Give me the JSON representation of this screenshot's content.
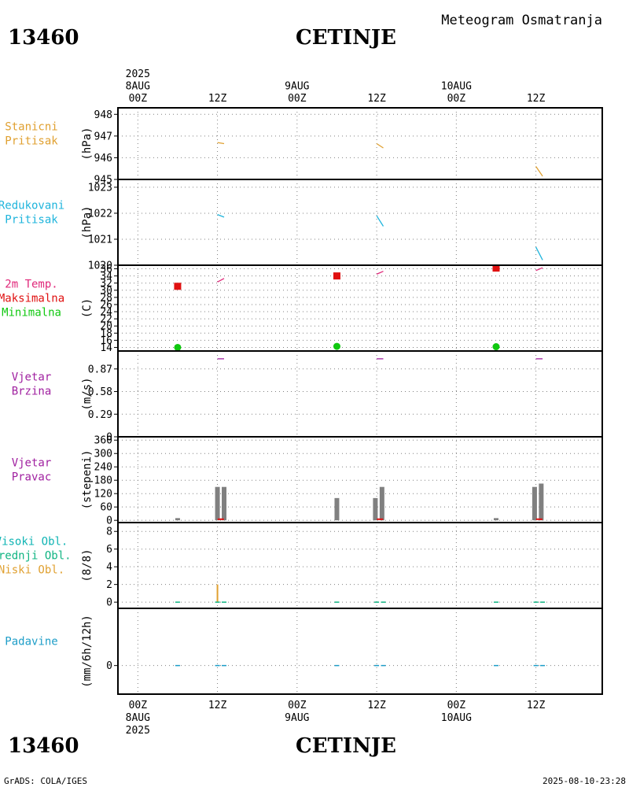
{
  "header": {
    "product": "Meteogram Osmatranja",
    "station_id": "13460",
    "station_name": "CETINJE"
  },
  "footer": {
    "credit": "GrADS: COLA/IGES",
    "timestamp": "2025-08-10-23:28"
  },
  "time_axis": {
    "ticks": [
      {
        "hour": 0,
        "top": [
          "2025",
          "8AUG",
          "00Z"
        ],
        "bottom": [
          "00Z",
          "8AUG",
          "2025"
        ]
      },
      {
        "hour": 12,
        "top": [
          "12Z"
        ],
        "bottom": [
          "12Z"
        ]
      },
      {
        "hour": 24,
        "top": [
          "9AUG",
          "00Z"
        ],
        "bottom": [
          "00Z",
          "9AUG"
        ]
      },
      {
        "hour": 36,
        "top": [
          "12Z"
        ],
        "bottom": [
          "12Z"
        ]
      },
      {
        "hour": 48,
        "top": [
          "10AUG",
          "00Z"
        ],
        "bottom": [
          "00Z",
          "10AUG"
        ]
      },
      {
        "hour": 60,
        "top": [
          "12Z"
        ],
        "bottom": [
          "12Z"
        ]
      }
    ],
    "xlim": [
      -3,
      70
    ]
  },
  "colors": {
    "station_pressure": "#e0a030",
    "reduced_pressure": "#1eb4dc",
    "temp_label": "#e0287a",
    "t_max": "#e01010",
    "t_min": "#10c810",
    "wind": "#a020a0",
    "cloud_high": "#10b4b4",
    "cloud_mid": "#10b482",
    "cloud_low": "#e0a030",
    "precip": "#1e9ec8",
    "wind_dir_bar": "#808080",
    "dotted_grid": "#808080"
  },
  "chart_data": [
    {
      "id": "station-pressure",
      "type": "line",
      "labels": [
        {
          "text": "Stanicni",
          "color": "#e0a030"
        },
        {
          "text": "Pritisak",
          "color": "#e0a030"
        }
      ],
      "ylabel": "(hPa)",
      "ylim": [
        945,
        948.3
      ],
      "yticks": [
        945,
        946,
        947,
        948
      ],
      "series": [
        {
          "color": "#e0a030",
          "points": [
            [
              12,
              946.7
            ],
            [
              13,
              946.65
            ]
          ]
        },
        {
          "color": "#e0a030",
          "points": [
            [
              36,
              946.65
            ],
            [
              37,
              946.45
            ]
          ]
        },
        {
          "color": "#e0a030",
          "points": [
            [
              60,
              945.6
            ],
            [
              61,
              945.15
            ]
          ]
        }
      ]
    },
    {
      "id": "reduced-pressure",
      "type": "line",
      "labels": [
        {
          "text": "Redukovani",
          "color": "#1eb4dc"
        },
        {
          "text": "Pritisak",
          "color": "#1eb4dc"
        }
      ],
      "ylabel": "(hPa)",
      "ylim": [
        1020,
        1023.3
      ],
      "yticks": [
        1020,
        1021,
        1022,
        1023
      ],
      "ytick_labels": [
        "1020",
        "1021",
        "1022",
        "1023"
      ],
      "series": [
        {
          "color": "#1eb4dc",
          "points": [
            [
              12,
              1021.95
            ],
            [
              13,
              1021.85
            ]
          ]
        },
        {
          "color": "#1eb4dc",
          "points": [
            [
              36,
              1021.9
            ],
            [
              37,
              1021.5
            ]
          ]
        },
        {
          "color": "#1eb4dc",
          "points": [
            [
              60,
              1020.7
            ],
            [
              61,
              1020.2
            ]
          ]
        }
      ]
    },
    {
      "id": "temperature",
      "type": "line",
      "labels": [
        {
          "text": "2m Temp.",
          "color": "#e0287a"
        },
        {
          "text": "Maksimalna",
          "color": "#e01010"
        },
        {
          "text": "Minimalna",
          "color": "#10c810"
        }
      ],
      "ylabel": "(C)",
      "ylim": [
        13,
        37
      ],
      "yticks": [
        14,
        16,
        18,
        20,
        22,
        24,
        26,
        28,
        30,
        32,
        34,
        36
      ],
      "series": [
        {
          "color": "#e0287a",
          "points": [
            [
              12,
              32.3
            ],
            [
              13,
              33.3
            ]
          ]
        },
        {
          "color": "#e0287a",
          "points": [
            [
              36,
              34.5
            ],
            [
              37,
              35.3
            ]
          ]
        },
        {
          "color": "#e0287a",
          "points": [
            [
              60,
              35.5
            ],
            [
              61,
              36.3
            ]
          ]
        }
      ],
      "t_max": [
        [
          6,
          31.1
        ],
        [
          30,
          34.0
        ],
        [
          54,
          36.2
        ]
      ],
      "t_min": [
        [
          6,
          14.0
        ],
        [
          30,
          14.3
        ],
        [
          54,
          14.2
        ]
      ]
    },
    {
      "id": "wind-speed",
      "type": "line",
      "labels": [
        {
          "text": "Vjetar",
          "color": "#a020a0"
        },
        {
          "text": "Brzina",
          "color": "#a020a0"
        }
      ],
      "ylabel": "(m/s)",
      "ylim": [
        0,
        1.1
      ],
      "yticks": [
        0,
        0.29,
        0.58,
        0.87
      ],
      "series": [
        {
          "color": "#a020a0",
          "points": [
            [
              12,
              1.0
            ],
            [
              13,
              1.0
            ]
          ]
        },
        {
          "color": "#a020a0",
          "points": [
            [
              36,
              1.0
            ],
            [
              37,
              1.0
            ]
          ]
        },
        {
          "color": "#a020a0",
          "points": [
            [
              60,
              1.0
            ],
            [
              61,
              1.0
            ]
          ]
        }
      ]
    },
    {
      "id": "wind-direction",
      "type": "bar",
      "labels": [
        {
          "text": "Vjetar",
          "color": "#a020a0"
        },
        {
          "text": "Pravac",
          "color": "#a020a0"
        }
      ],
      "ylabel": "(stepeni)",
      "ylim": [
        -10,
        375
      ],
      "yticks": [
        0,
        60,
        120,
        180,
        240,
        300,
        360
      ],
      "bars": [
        {
          "x": 6,
          "value": 10
        },
        {
          "x": 12,
          "value": 150
        },
        {
          "x": 13,
          "value": 150
        },
        {
          "x": 30,
          "value": 100
        },
        {
          "x": 35.8,
          "value": 100
        },
        {
          "x": 36.8,
          "value": 150
        },
        {
          "x": 54,
          "value": 10
        },
        {
          "x": 59.8,
          "value": 150
        },
        {
          "x": 60.8,
          "value": 165
        }
      ],
      "markers": [
        {
          "x": 12.5,
          "value": 5,
          "color": "#e01010"
        },
        {
          "x": 36.5,
          "value": 5,
          "color": "#e01010"
        },
        {
          "x": 60.5,
          "value": 5,
          "color": "#e01010"
        }
      ]
    },
    {
      "id": "clouds",
      "type": "bar",
      "labels": [
        {
          "text": "Visoki Obl.",
          "color": "#10b4b4"
        },
        {
          "text": "Srednji Obl.",
          "color": "#10b482"
        },
        {
          "text": "Niski Obl.",
          "color": "#e0a030"
        }
      ],
      "ylabel": "(8/8)",
      "ylim": [
        -0.7,
        9
      ],
      "yticks": [
        0,
        2,
        4,
        6,
        8
      ],
      "bars": [
        {
          "x": 12,
          "value": 2,
          "color": "#e0a030",
          "width": 2
        }
      ],
      "baseline_marks": [
        6,
        12,
        13,
        30,
        36,
        37,
        54,
        60,
        61
      ]
    },
    {
      "id": "precipitation",
      "type": "bar",
      "labels": [
        {
          "text": "Padavine",
          "color": "#1e9ec8"
        }
      ],
      "ylabel": "(mm/6h/12h)",
      "ylim": [
        -0.25,
        0.5
      ],
      "yticks": [
        0
      ],
      "baseline_marks": [
        6,
        12,
        13,
        30,
        36,
        37,
        54,
        60,
        61
      ]
    }
  ]
}
